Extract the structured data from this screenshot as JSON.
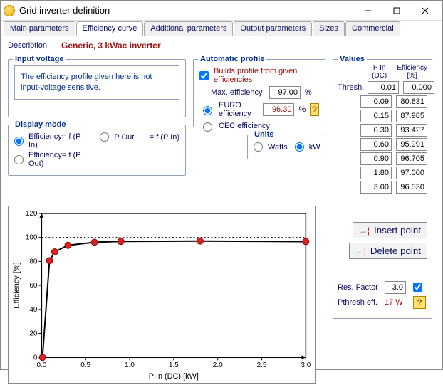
{
  "window": {
    "title": "Grid inverter definition"
  },
  "tabs": {
    "items": [
      {
        "label": "Main parameters"
      },
      {
        "label": "Efficiency curve"
      },
      {
        "label": "Additional parameters"
      },
      {
        "label": "Output parameters"
      },
      {
        "label": "Sizes"
      },
      {
        "label": "Commercial"
      }
    ],
    "active_index": 1
  },
  "description": {
    "label": "Description",
    "value": "Generic,  3 kWac inverter"
  },
  "input_voltage": {
    "legend": "Input voltage",
    "info_text": "The efficiency profile given here is not input-voltage sensitive."
  },
  "display_mode": {
    "legend": "Display mode",
    "eff_pin_label": "Efficiency= f (P In)",
    "eff_pout_label": "Efficiency= f (P Out)",
    "pout_pin_label": "P Out       = f (P In)",
    "selected": "eff_pin"
  },
  "automatic_profile": {
    "legend": "Automatic profile",
    "builds_label": "Builds profile from given efficiencies",
    "builds_checked": true,
    "max_eff_label": "Max. efficiency",
    "max_eff_value": "97.00",
    "euro_eff_label": "EURO efficiency",
    "euro_eff_value": "96.30",
    "cec_eff_label": "CEC efficiency",
    "eff_kind_selected": "euro",
    "percent": "%"
  },
  "units": {
    "legend": "Units",
    "watts_label": "Watts",
    "kw_label": "kW",
    "selected": "kw"
  },
  "values": {
    "legend": "Values",
    "pin_header": "P In (DC)",
    "eff_header": "Efficiency [%]",
    "thresh_label": "Thresh.",
    "rows": [
      {
        "pin": "0.01",
        "eff": "0.000",
        "is_thresh": true
      },
      {
        "pin": "0.09",
        "eff": "80.631"
      },
      {
        "pin": "0.15",
        "eff": "87.985"
      },
      {
        "pin": "0.30",
        "eff": "93.427"
      },
      {
        "pin": "0.60",
        "eff": "95.991"
      },
      {
        "pin": "0.90",
        "eff": "96.705"
      },
      {
        "pin": "1.80",
        "eff": "97.000"
      },
      {
        "pin": "3.00",
        "eff": "96.530"
      }
    ],
    "insert_label": "Insert point",
    "delete_label": "Delete point"
  },
  "footer": {
    "res_factor_label": "Res. Factor",
    "res_factor_value": "3.0",
    "res_factor_checked": true,
    "pthresh_label": "Pthresh eff.",
    "pthresh_value": "17 W"
  },
  "chart": {
    "type": "line",
    "x_label": "P In (DC) [kW]",
    "y_label": "Efficiency [%]",
    "xlim": [
      0,
      3.0
    ],
    "ylim": [
      0,
      120
    ],
    "xtick_step": 0.5,
    "ytick_step": 20,
    "xticks_labels": [
      "0.0",
      "0.5",
      "1.0",
      "1.5",
      "2.0",
      "2.5",
      "3.0"
    ],
    "yticks_labels": [
      "0",
      "20",
      "40",
      "60",
      "80",
      "100",
      "120"
    ],
    "ref_line_y": 100,
    "ref_line_color": "#000000",
    "ref_line_dash": "2,3",
    "line_color": "#000000",
    "line_width": 2,
    "marker_color": "#e02020",
    "marker_stroke": "#801010",
    "marker_radius": 4.5,
    "background_color": "#ffffff",
    "axis_color": "#000000",
    "tick_fontsize": 10,
    "label_fontsize": 11,
    "points": [
      {
        "x": 0.01,
        "y": 0.0
      },
      {
        "x": 0.09,
        "y": 80.631
      },
      {
        "x": 0.15,
        "y": 87.985
      },
      {
        "x": 0.3,
        "y": 93.427
      },
      {
        "x": 0.6,
        "y": 95.991
      },
      {
        "x": 0.9,
        "y": 96.705
      },
      {
        "x": 1.8,
        "y": 97.0
      },
      {
        "x": 3.0,
        "y": 96.53
      }
    ]
  },
  "colors": {
    "link_blue": "#003090",
    "warn_red": "#a01010",
    "panel_border": "#90a0c0"
  }
}
